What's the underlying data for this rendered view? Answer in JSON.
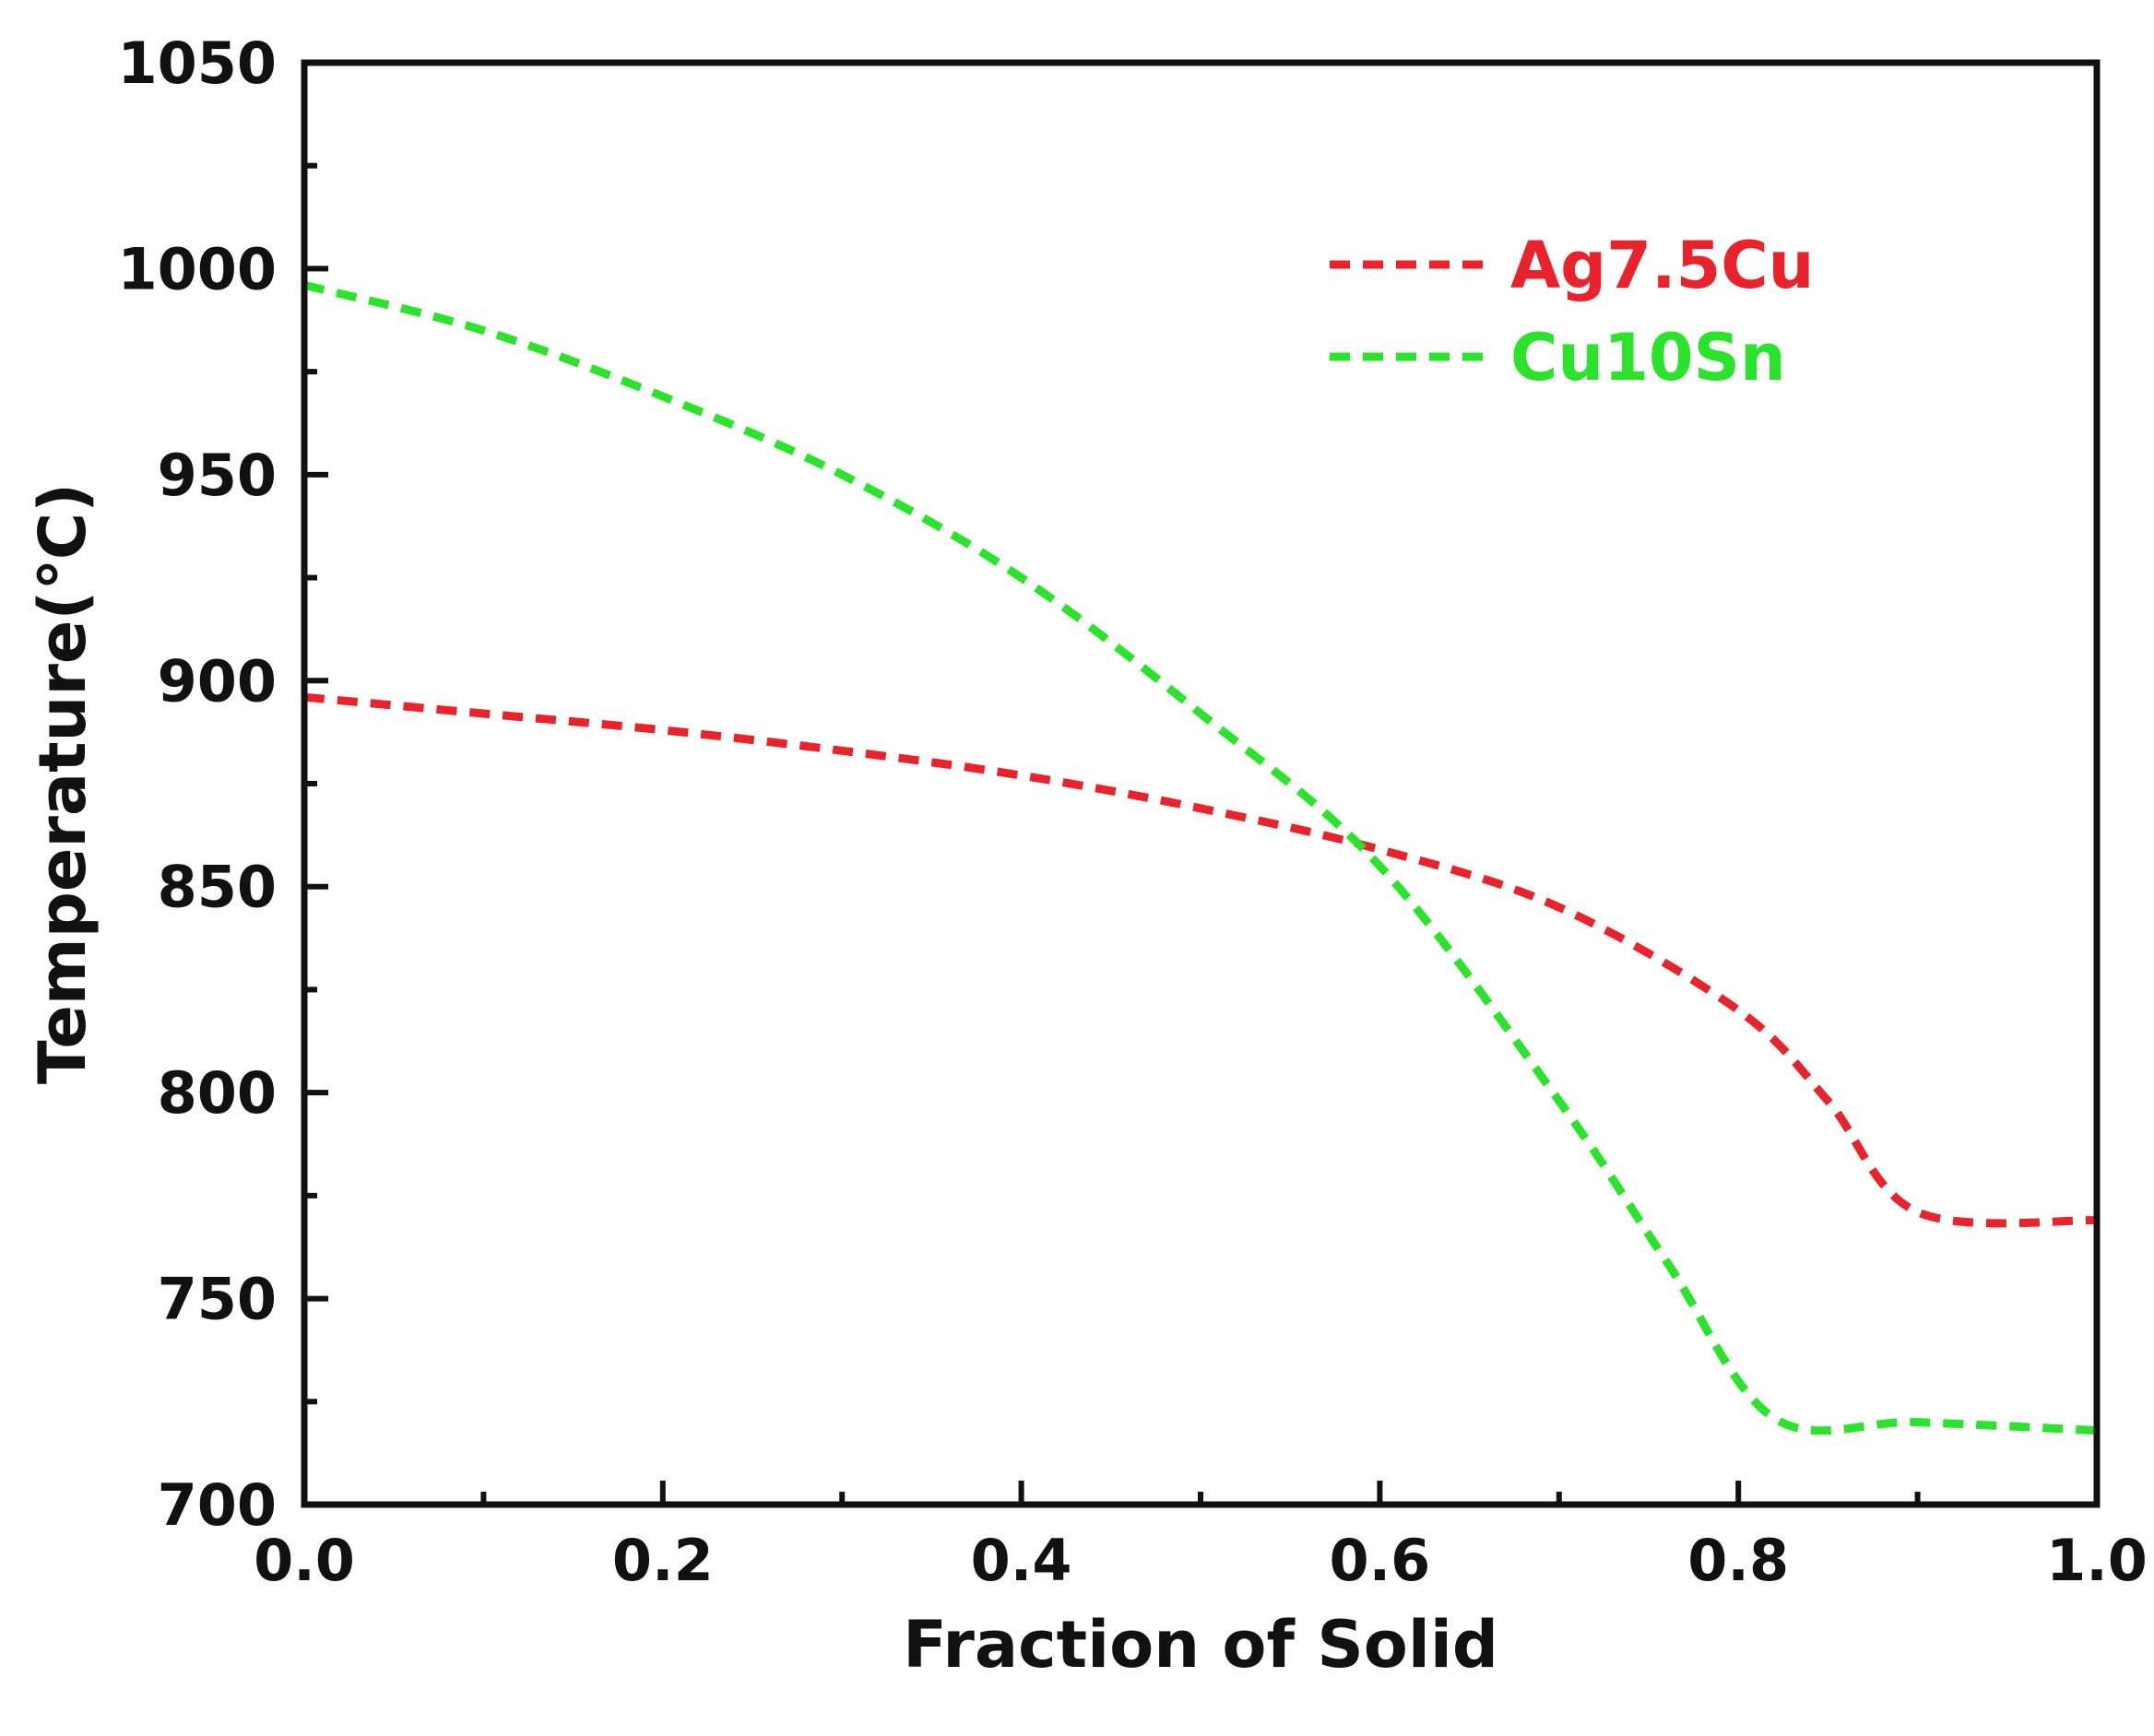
{
  "chart_data": {
    "type": "line",
    "xlabel": "Fraction of Solid",
    "ylabel": "Temperature(℃)",
    "xlim": [
      0.0,
      1.0
    ],
    "ylim": [
      700,
      1050
    ],
    "x_ticks": [
      "0.0",
      "0.2",
      "0.4",
      "0.6",
      "0.8",
      "1.0"
    ],
    "y_ticks": [
      "700",
      "750",
      "800",
      "850",
      "900",
      "950",
      "1000",
      "1050"
    ],
    "x_tick_values": [
      0.0,
      0.2,
      0.4,
      0.6,
      0.8,
      1.0
    ],
    "y_tick_values": [
      700,
      750,
      800,
      850,
      900,
      950,
      1000,
      1050
    ],
    "x_minor_ticks": [
      0.1,
      0.3,
      0.5,
      0.7,
      0.9
    ],
    "y_minor_ticks": [
      725,
      775,
      825,
      875,
      925,
      975,
      1025
    ],
    "grid": false,
    "legend_position": "top-right",
    "series": [
      {
        "name": "Ag7.5Cu",
        "color": "#e8232b",
        "dash": "dashed",
        "x": [
          0.0,
          0.1,
          0.2,
          0.3,
          0.4,
          0.5,
          0.6,
          0.7,
          0.8,
          0.85,
          0.9,
          1.0
        ],
        "y": [
          896,
          892,
          888,
          883,
          877,
          869,
          859,
          845,
          820,
          798,
          771,
          769
        ]
      },
      {
        "name": "Cu10Sn",
        "color": "#2be32b",
        "dash": "dashed",
        "x": [
          0.0,
          0.1,
          0.2,
          0.3,
          0.4,
          0.5,
          0.6,
          0.7,
          0.76,
          0.82,
          0.9,
          1.0
        ],
        "y": [
          996,
          985,
          969,
          950,
          925,
          892,
          855,
          798,
          759,
          721,
          720,
          718
        ]
      }
    ]
  }
}
